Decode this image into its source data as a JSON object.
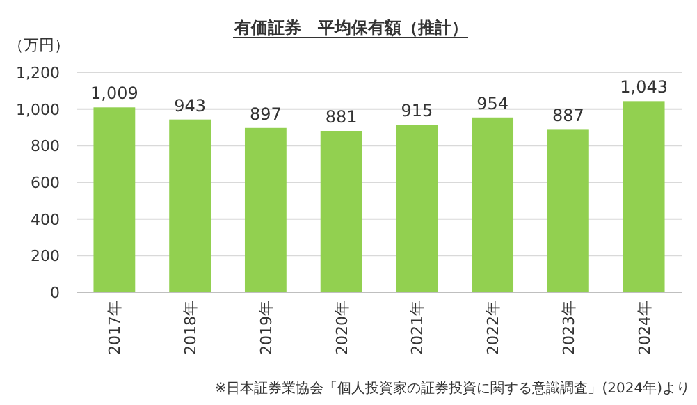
{
  "chart_data": {
    "type": "bar",
    "title": "有価証券　平均保有額（推計）",
    "ylabel": "（万円）",
    "categories": [
      "2017年",
      "2018年",
      "2019年",
      "2020年",
      "2021年",
      "2022年",
      "2023年",
      "2024年"
    ],
    "values": [
      1009,
      943,
      897,
      881,
      915,
      954,
      887,
      1043
    ],
    "value_labels": [
      "1,009",
      "943",
      "897",
      "881",
      "915",
      "954",
      "887",
      "1,043"
    ],
    "color": "#92d050",
    "ylim": [
      0,
      1200
    ],
    "yticks": [
      0,
      {
        "value": 200,
        "label": "200"
      },
      {
        "value": 400,
        "label": "400"
      },
      {
        "value": 600,
        "label": "600"
      },
      {
        "value": 800,
        "label": "800"
      },
      {
        "value": 1000,
        "label": "1,000"
      },
      {
        "value": 1200,
        "label": "1,200"
      }
    ],
    "grid": "y",
    "annotations": [
      "※日本証券業協会「個人投資家の証券投資に関する意識調査」(2024年)より"
    ]
  }
}
